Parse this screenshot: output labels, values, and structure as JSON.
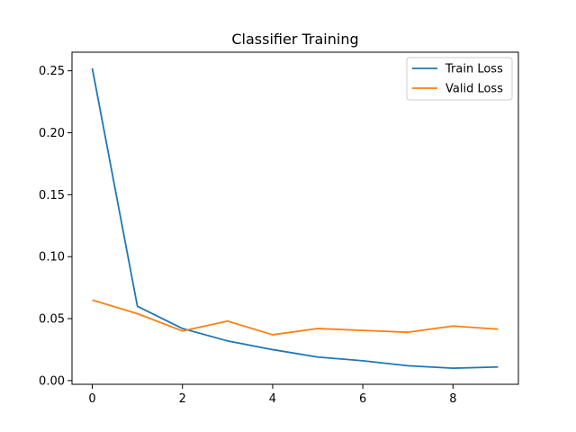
{
  "chart_data": {
    "type": "line",
    "title": "Classifier Training",
    "xlabel": "",
    "ylabel": "",
    "x": [
      0,
      1,
      2,
      3,
      4,
      5,
      6,
      7,
      8,
      9
    ],
    "xlim": [
      -0.45,
      9.45
    ],
    "ylim": [
      -0.003,
      0.265
    ],
    "xticks": [
      0,
      2,
      4,
      6,
      8
    ],
    "yticks": [
      0.0,
      0.05,
      0.1,
      0.15,
      0.2,
      0.25
    ],
    "ytick_labels": [
      "0.00",
      "0.05",
      "0.10",
      "0.15",
      "0.20",
      "0.25"
    ],
    "grid": false,
    "legend_position": "top-right",
    "series": [
      {
        "name": "Train Loss",
        "color": "#1f77b4",
        "values": [
          0.252,
          0.06,
          0.042,
          0.032,
          0.025,
          0.019,
          0.016,
          0.012,
          0.01,
          0.011
        ]
      },
      {
        "name": "Valid Loss",
        "color": "#ff7f0e",
        "values": [
          0.065,
          0.054,
          0.04,
          0.048,
          0.037,
          0.042,
          0.0405,
          0.039,
          0.044,
          0.0415
        ]
      }
    ]
  }
}
